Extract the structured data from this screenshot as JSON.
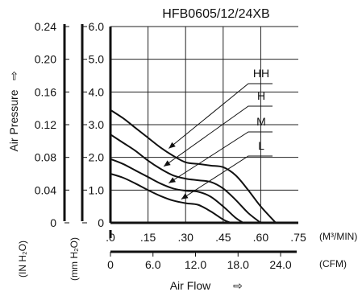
{
  "chart_data": {
    "type": "line",
    "title": "HFB0605/12/24XB",
    "xlabel": "Air Flow",
    "xlabel_arrow": "⇨",
    "ylabel": "Air Pressure",
    "ylabel_arrow": "⇨",
    "x_units": {
      "primary": "(M³/MIN)",
      "secondary": "(CFM)"
    },
    "y_units": {
      "primary": "(mm H₂O)",
      "secondary": "(IN H₂O)"
    },
    "x_ticks_m3": [
      ".0",
      ".15",
      ".30",
      ".45",
      ".60",
      ".75"
    ],
    "x_ticks_cfm": [
      "0",
      "6.0",
      "12.0",
      "18.0",
      "24.0"
    ],
    "y_ticks_mm": [
      "0",
      "1.0",
      "2.0",
      "3.0",
      "4.0",
      "5.0",
      "6.0"
    ],
    "y_ticks_in": [
      "0",
      "0.04",
      "0.08",
      "0.12",
      "0.16",
      "0.20",
      "0.24"
    ],
    "xlim": [
      0,
      0.75
    ],
    "ylim": [
      0,
      6.0
    ],
    "grid": true,
    "series": [
      {
        "name": "HH",
        "x": [
          0,
          0.05,
          0.1,
          0.15,
          0.2,
          0.25,
          0.3,
          0.35,
          0.4,
          0.45,
          0.5,
          0.55,
          0.6,
          0.66
        ],
        "y": [
          3.45,
          3.2,
          2.9,
          2.6,
          2.3,
          2.05,
          1.85,
          1.8,
          1.75,
          1.7,
          1.45,
          1.0,
          0.5,
          0
        ]
      },
      {
        "name": "H",
        "x": [
          0,
          0.05,
          0.1,
          0.15,
          0.2,
          0.25,
          0.3,
          0.35,
          0.4,
          0.45,
          0.5,
          0.55,
          0.6
        ],
        "y": [
          2.7,
          2.45,
          2.2,
          1.9,
          1.65,
          1.45,
          1.35,
          1.3,
          1.25,
          1.05,
          0.7,
          0.3,
          0
        ]
      },
      {
        "name": "M",
        "x": [
          0,
          0.05,
          0.1,
          0.15,
          0.2,
          0.25,
          0.3,
          0.35,
          0.4,
          0.45,
          0.5,
          0.53
        ],
        "y": [
          1.95,
          1.8,
          1.6,
          1.4,
          1.2,
          1.05,
          0.98,
          0.95,
          0.8,
          0.5,
          0.15,
          0
        ]
      },
      {
        "name": "L",
        "x": [
          0,
          0.05,
          0.1,
          0.15,
          0.2,
          0.25,
          0.3,
          0.35,
          0.4,
          0.45,
          0.48
        ],
        "y": [
          1.5,
          1.38,
          1.2,
          1.0,
          0.82,
          0.68,
          0.6,
          0.55,
          0.35,
          0.1,
          0
        ]
      }
    ]
  }
}
